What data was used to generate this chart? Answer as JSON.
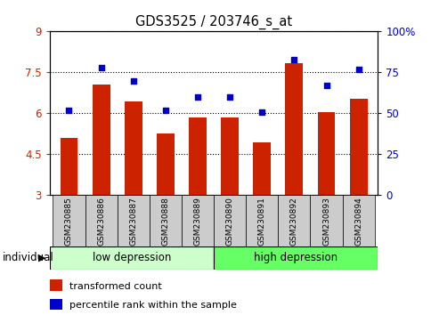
{
  "title": "GDS3525 / 203746_s_at",
  "samples": [
    "GSM230885",
    "GSM230886",
    "GSM230887",
    "GSM230888",
    "GSM230889",
    "GSM230890",
    "GSM230891",
    "GSM230892",
    "GSM230893",
    "GSM230894"
  ],
  "transformed_count": [
    5.1,
    7.05,
    6.45,
    5.25,
    5.85,
    5.85,
    4.95,
    7.85,
    6.05,
    6.55
  ],
  "percentile_rank": [
    52,
    78,
    70,
    52,
    60,
    60,
    51,
    83,
    67,
    77
  ],
  "ylim_left": [
    3,
    9
  ],
  "ylim_right": [
    0,
    100
  ],
  "yticks_left": [
    3,
    4.5,
    6,
    7.5,
    9
  ],
  "yticks_right": [
    0,
    25,
    50,
    75,
    100
  ],
  "ytick_labels_left": [
    "3",
    "4.5",
    "6",
    "7.5",
    "9"
  ],
  "ytick_labels_right": [
    "0",
    "25",
    "50",
    "75",
    "100%"
  ],
  "bar_color": "#CC2200",
  "dot_color": "#0000CC",
  "bar_bottom": 3,
  "group1_label": "low depression",
  "group2_label": "high depression",
  "group1_count": 5,
  "group2_count": 5,
  "legend_bar_label": "transformed count",
  "legend_dot_label": "percentile rank within the sample",
  "individual_label": "individual",
  "group1_color": "#CCFFCC",
  "group2_color": "#66FF66",
  "tick_area_color": "#CCCCCC",
  "grid_linestyle": "dotted"
}
